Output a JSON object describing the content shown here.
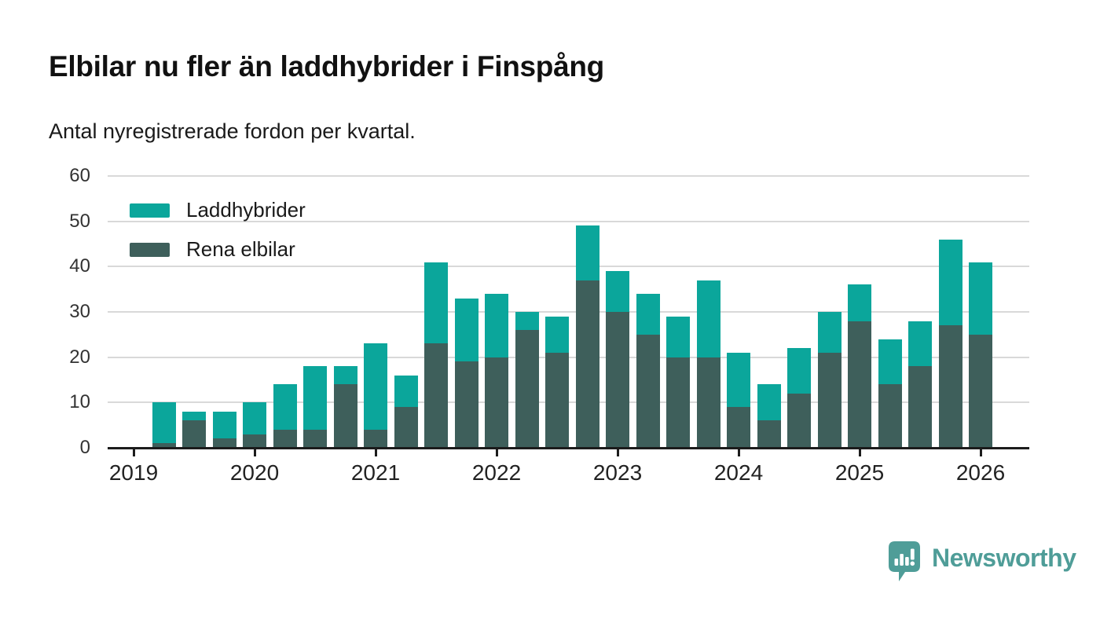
{
  "header": {
    "title": "Elbilar nu fler än laddhybrider i Finspång",
    "subtitle": "Antal nyregistrerade fordon per kvartal."
  },
  "chart_data": {
    "type": "bar",
    "stacked": true,
    "title": "Elbilar nu fler än laddhybrider i Finspång",
    "subtitle": "Antal nyregistrerade fordon per kvartal.",
    "x": [
      "2019-Q2",
      "2019-Q3",
      "2019-Q4",
      "2020-Q1",
      "2020-Q2",
      "2020-Q3",
      "2020-Q4",
      "2021-Q1",
      "2021-Q2",
      "2021-Q3",
      "2021-Q4",
      "2022-Q1",
      "2022-Q2",
      "2022-Q3",
      "2022-Q4",
      "2023-Q1",
      "2023-Q2",
      "2023-Q3",
      "2023-Q4",
      "2024-Q1",
      "2024-Q2",
      "2024-Q3",
      "2024-Q4",
      "2025-Q1",
      "2025-Q2",
      "2025-Q3",
      "2025-Q4",
      "2026-Q1"
    ],
    "series": [
      {
        "name": "Laddhybrider",
        "color": "#0ba69b",
        "stack_position": "top",
        "values": [
          9,
          2,
          6,
          7,
          10,
          14,
          4,
          19,
          7,
          18,
          14,
          14,
          4,
          8,
          12,
          9,
          9,
          9,
          17,
          12,
          8,
          10,
          9,
          8,
          10,
          10,
          19,
          16
        ]
      },
      {
        "name": "Rena elbilar",
        "color": "#3e5f5b",
        "stack_position": "bottom",
        "values": [
          1,
          6,
          2,
          3,
          4,
          4,
          14,
          4,
          9,
          23,
          19,
          20,
          26,
          21,
          37,
          30,
          25,
          20,
          20,
          9,
          6,
          12,
          21,
          28,
          14,
          18,
          27,
          25
        ]
      }
    ],
    "totals": [
      10,
      8,
      8,
      10,
      14,
      18,
      18,
      23,
      16,
      41,
      33,
      34,
      30,
      29,
      49,
      39,
      34,
      29,
      37,
      21,
      14,
      22,
      30,
      36,
      24,
      28,
      46,
      41
    ],
    "ylim": [
      0,
      60
    ],
    "y_ticks": [
      0,
      10,
      20,
      30,
      40,
      50,
      60
    ],
    "x_year_labels": [
      "2019",
      "2020",
      "2021",
      "2022",
      "2023",
      "2024",
      "2025",
      "2026"
    ],
    "grid": "horizontal",
    "legend_position": "top-left"
  },
  "branding": {
    "logo_text": "Newsworthy",
    "logo_color": "#4f9d98",
    "logo_icon": "speech-bubble-bar-chart-icon"
  }
}
